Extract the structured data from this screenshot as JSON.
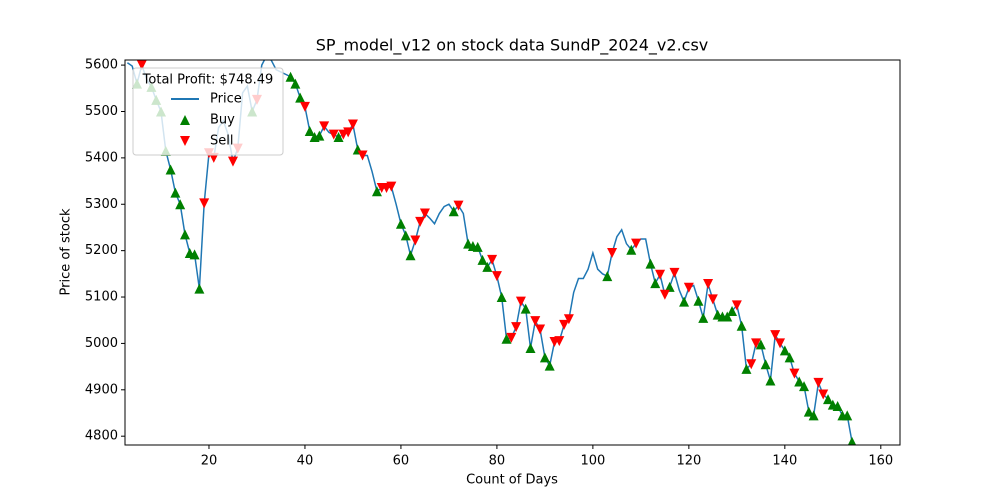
{
  "chart_data": {
    "type": "line-scatter",
    "title": "SP_model_v12 on stock data SundP_2024_v2.csv",
    "x_label": "Count of Days",
    "y_label": "Price of stock",
    "legend_title": "Total Profit: $748.49",
    "legend": "upper left",
    "xlim": [
      2.5,
      164
    ],
    "ylim": [
      4781,
      5611
    ],
    "xticks": [
      20,
      40,
      60,
      80,
      100,
      120,
      140,
      160
    ],
    "yticks": [
      4800,
      4900,
      5000,
      5100,
      5200,
      5300,
      5400,
      5500,
      5600
    ],
    "series": [
      {
        "name": "Price",
        "color": "#1f77b4",
        "marker": "line",
        "x": [
          3,
          4,
          5,
          6,
          7,
          8,
          9,
          10,
          11,
          12,
          13,
          14,
          15,
          16,
          17,
          18,
          19,
          20,
          21,
          22,
          23,
          24,
          25,
          26,
          27,
          28,
          29,
          30,
          31,
          32,
          33,
          34,
          35,
          36,
          37,
          38,
          39,
          40,
          41,
          42,
          43,
          44,
          45,
          46,
          47,
          48,
          49,
          50,
          51,
          52,
          53,
          54,
          55,
          56,
          57,
          58,
          59,
          60,
          61,
          62,
          63,
          64,
          65,
          66,
          67,
          68,
          69,
          70,
          71,
          72,
          73,
          74,
          75,
          76,
          77,
          78,
          79,
          80,
          81,
          82,
          83,
          84,
          85,
          86,
          87,
          88,
          89,
          90,
          91,
          92,
          93,
          94,
          95,
          96,
          97,
          98,
          99,
          100,
          101,
          102,
          103,
          104,
          105,
          106,
          107,
          108,
          109,
          110,
          111,
          112,
          113,
          114,
          115,
          116,
          117,
          118,
          119,
          120,
          121,
          122,
          123,
          124,
          125,
          126,
          127,
          128,
          129,
          130,
          131,
          132,
          133,
          134,
          135,
          136,
          137,
          138,
          139,
          140,
          141,
          142,
          143,
          144,
          145,
          146,
          147,
          148,
          149,
          150,
          151,
          152,
          153,
          154,
          155
        ],
        "values": [
          5605,
          5598,
          5560,
          5600,
          5570,
          5553,
          5525,
          5500,
          5415,
          5375,
          5325,
          5300,
          5235,
          5195,
          5192,
          5118,
          5302,
          5410,
          5400,
          5465,
          5480,
          5450,
          5392,
          5420,
          5540,
          5555,
          5500,
          5525,
          5600,
          5620,
          5610,
          5590,
          5585,
          5580,
          5575,
          5560,
          5530,
          5510,
          5458,
          5445,
          5448,
          5468,
          5455,
          5450,
          5445,
          5450,
          5455,
          5472,
          5418,
          5405,
          5405,
          5370,
          5328,
          5335,
          5335,
          5338,
          5300,
          5258,
          5233,
          5190,
          5222,
          5262,
          5280,
          5270,
          5258,
          5280,
          5295,
          5300,
          5285,
          5297,
          5280,
          5215,
          5210,
          5208,
          5180,
          5165,
          5180,
          5145,
          5100,
          5010,
          5012,
          5035,
          5090,
          5075,
          4990,
          5048,
          5030,
          4970,
          4952,
          5003,
          5005,
          5040,
          5052,
          5110,
          5140,
          5140,
          5160,
          5195,
          5160,
          5150,
          5145,
          5195,
          5230,
          5245,
          5215,
          5202,
          5215,
          5225,
          5225,
          5172,
          5130,
          5148,
          5105,
          5122,
          5152,
          5115,
          5090,
          5120,
          5125,
          5092,
          5055,
          5128,
          5095,
          5062,
          5058,
          5058,
          5070,
          5082,
          5038,
          4945,
          4955,
          5000,
          4998,
          4955,
          4920,
          5018,
          5000,
          4985,
          4970,
          4935,
          4918,
          4908,
          4853,
          4845,
          4915,
          4890,
          4880,
          4868,
          4865,
          4845,
          4845,
          4788,
          4770
        ]
      },
      {
        "name": "Buy",
        "color": "#008000",
        "marker": "up",
        "x": [
          5,
          8,
          9,
          10,
          11,
          12,
          13,
          14,
          15,
          16,
          17,
          18,
          29,
          37,
          38,
          39,
          41,
          42,
          43,
          47,
          51,
          55,
          60,
          61,
          62,
          71,
          74,
          75,
          76,
          77,
          78,
          81,
          82,
          86,
          87,
          90,
          91,
          103,
          108,
          112,
          113,
          116,
          119,
          122,
          123,
          126,
          127,
          128,
          129,
          131,
          132,
          135,
          136,
          137,
          140,
          141,
          143,
          144,
          145,
          146,
          149,
          150,
          151,
          152,
          153,
          154
        ],
        "values": [
          5560,
          5553,
          5525,
          5500,
          5415,
          5375,
          5325,
          5300,
          5235,
          5195,
          5192,
          5118,
          5500,
          5575,
          5560,
          5530,
          5458,
          5445,
          5448,
          5445,
          5418,
          5328,
          5258,
          5233,
          5190,
          5285,
          5215,
          5210,
          5208,
          5180,
          5165,
          5100,
          5010,
          5075,
          4990,
          4970,
          4952,
          5145,
          5202,
          5172,
          5130,
          5122,
          5090,
          5092,
          5055,
          5062,
          5058,
          5058,
          5070,
          5038,
          4945,
          4998,
          4955,
          4920,
          4985,
          4970,
          4918,
          4908,
          4853,
          4845,
          4880,
          4868,
          4865,
          4845,
          4845,
          4788
        ]
      },
      {
        "name": "Sell",
        "color": "#ff0000",
        "marker": "down",
        "x": [
          6,
          19,
          20,
          21,
          25,
          26,
          30,
          40,
          44,
          46,
          48,
          49,
          50,
          52,
          56,
          57,
          58,
          63,
          64,
          65,
          72,
          79,
          80,
          83,
          84,
          85,
          88,
          89,
          92,
          93,
          94,
          95,
          104,
          109,
          114,
          115,
          117,
          120,
          124,
          125,
          130,
          133,
          134,
          138,
          139,
          142,
          147,
          148
        ],
        "values": [
          5600,
          5302,
          5410,
          5400,
          5392,
          5420,
          5525,
          5510,
          5468,
          5450,
          5450,
          5455,
          5472,
          5405,
          5335,
          5335,
          5338,
          5222,
          5262,
          5280,
          5297,
          5180,
          5145,
          5012,
          5035,
          5090,
          5048,
          5030,
          5003,
          5005,
          5040,
          5052,
          5195,
          5215,
          5148,
          5105,
          5152,
          5120,
          5128,
          5095,
          5082,
          4955,
          5000,
          5018,
          5000,
          4935,
          4915,
          4890
        ]
      }
    ]
  }
}
